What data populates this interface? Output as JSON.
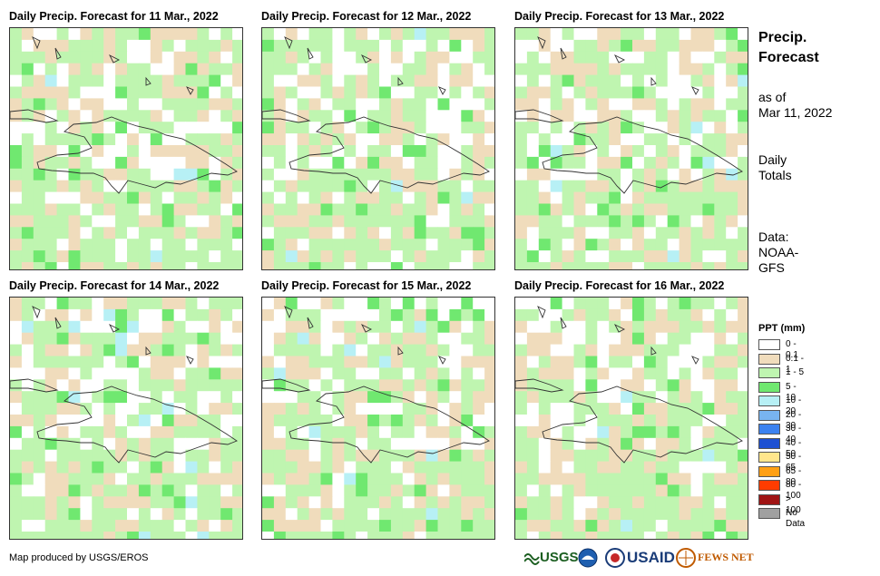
{
  "panels": [
    {
      "title": "Daily Precip. Forecast for 11 Mar., 2022",
      "seed": 11
    },
    {
      "title": "Daily Precip. Forecast for 12 Mar., 2022",
      "seed": 12
    },
    {
      "title": "Daily Precip. Forecast for 13 Mar., 2022",
      "seed": 13
    },
    {
      "title": "Daily Precip. Forecast for 14 Mar., 2022",
      "seed": 14
    },
    {
      "title": "Daily Precip. Forecast for 15 Mar., 2022",
      "seed": 15
    },
    {
      "title": "Daily Precip. Forecast for 16 Mar., 2022",
      "seed": 16
    }
  ],
  "side": {
    "title_line1": "Precip.",
    "title_line2": "Forecast",
    "asof_line1": "as of",
    "asof_line2": "Mar 11, 2022",
    "totals_line1": "Daily",
    "totals_line2": "Totals",
    "data_line1": "Data:",
    "data_line2": "NOAA-",
    "data_line3": "GFS"
  },
  "legend": {
    "title": "PPT (mm)",
    "items": [
      {
        "label": "0 - 0.1",
        "color": "#ffffff"
      },
      {
        "label": "0.1 - 1",
        "color": "#f0dcbc"
      },
      {
        "label": "1 - 5",
        "color": "#bff5b0"
      },
      {
        "label": "5 - 10",
        "color": "#70e870"
      },
      {
        "label": "10 - 20",
        "color": "#b7f0f5"
      },
      {
        "label": "20 - 30",
        "color": "#78b4f0"
      },
      {
        "label": "30 - 40",
        "color": "#3c82f0"
      },
      {
        "label": "40 - 50",
        "color": "#1e50d2"
      },
      {
        "label": "50 - 65",
        "color": "#ffe68c"
      },
      {
        "label": "65 - 80",
        "color": "#ffa014"
      },
      {
        "label": "80 - 100",
        "color": "#ff3c00"
      },
      {
        "label": "> 100",
        "color": "#a01414"
      },
      {
        "label": "No Data",
        "color": "#a0a0a0"
      }
    ]
  },
  "credit": "Map produced by USGS/EROS",
  "logos": {
    "usgs": "USGS",
    "usaid": "USAID",
    "fewsnet": "FEWS NET"
  }
}
